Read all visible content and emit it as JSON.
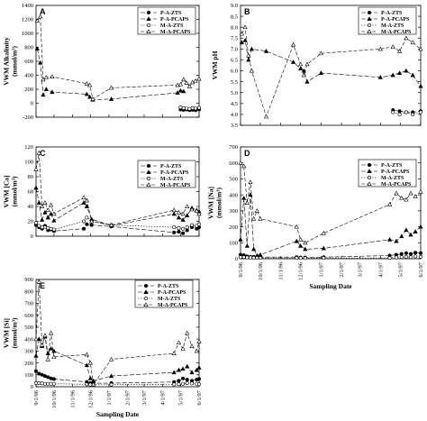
{
  "x_ticks": [
    "9/1/96",
    "10/1/96",
    "11/1/96",
    "12/1/96",
    "1/1/97",
    "2/1/97",
    "3/1/97",
    "4/1/97",
    "5/1/97",
    "6/1/97"
  ],
  "x_label": "Sampling Date",
  "legend": [
    "P-A-ZTS",
    "P-A-PCAPS",
    "M-A-ZTS",
    "M-A-PCAPS"
  ],
  "colors": {
    "axis": "#000000",
    "line": "#000000",
    "background": "#ffffff"
  },
  "chart_data": [
    {
      "panel": "A",
      "type": "line",
      "ylabel_lines": [
        "VWM Alkalinity",
        "(mmol/m³)"
      ],
      "ylim": [
        -200,
        1400
      ],
      "yticks": [
        -200,
        0,
        200,
        400,
        600,
        800,
        1000,
        1200,
        1400
      ],
      "x": [
        "9/3/96",
        "9/8/96",
        "9/13/96",
        "9/18/96",
        "9/28/96",
        "11/25/96",
        "11/30/96",
        "12/5/96",
        "1/5/97",
        "4/26/97",
        "5/1/97",
        "5/6/97",
        "5/11/97",
        "5/16/97",
        "5/21/97",
        "5/26/97",
        "6/1/97"
      ],
      "series": [
        {
          "name": "P-A-ZTS",
          "marker": "filled-circle",
          "values": [
            null,
            null,
            null,
            null,
            null,
            null,
            null,
            null,
            null,
            null,
            -90,
            -95,
            -90,
            -100,
            -95,
            -100,
            -90
          ]
        },
        {
          "name": "P-A-PCAPS",
          "marker": "filled-triangle",
          "values": [
            780,
            580,
            120,
            200,
            160,
            130,
            90,
            50,
            60,
            150,
            180,
            170,
            null,
            null,
            null,
            null,
            null
          ]
        },
        {
          "name": "M-A-ZTS",
          "marker": "open-circle",
          "values": [
            null,
            null,
            null,
            null,
            null,
            null,
            null,
            null,
            null,
            null,
            -60,
            -70,
            -75,
            -80,
            -70,
            -75,
            -65
          ]
        },
        {
          "name": "M-A-PCAPS",
          "marker": "open-triangle",
          "values": [
            1180,
            1240,
            340,
            370,
            380,
            280,
            260,
            60,
            220,
            260,
            270,
            340,
            290,
            240,
            300,
            320,
            350
          ]
        }
      ]
    },
    {
      "panel": "B",
      "type": "line",
      "ylabel_lines": [
        "VWM pH"
      ],
      "ylim": [
        3.5,
        9.0
      ],
      "yticks": [
        3.5,
        4.0,
        4.5,
        5.0,
        5.5,
        6.0,
        6.5,
        7.0,
        7.5,
        8.0,
        8.5,
        9.0
      ],
      "x": [
        "9/3/96",
        "9/8/96",
        "9/13/96",
        "9/18/96",
        "10/10/96",
        "11/20/96",
        "12/1/96",
        "12/6/96",
        "12/11/96",
        "1/1/97",
        "4/1/97",
        "4/20/97",
        "4/30/97",
        "5/10/97",
        "5/20/97",
        "6/1/97"
      ],
      "series": [
        {
          "name": "P-A-ZTS",
          "marker": "filled-circle",
          "values": [
            null,
            null,
            null,
            null,
            null,
            null,
            null,
            null,
            null,
            null,
            null,
            4.2,
            4.15,
            4.1,
            4.1,
            4.15
          ]
        },
        {
          "name": "P-A-PCAPS",
          "marker": "filled-triangle",
          "values": [
            7.3,
            7.4,
            6.5,
            7.0,
            6.9,
            6.4,
            6.1,
            6.0,
            5.5,
            5.9,
            5.7,
            5.8,
            5.9,
            6.0,
            5.8,
            5.3
          ]
        },
        {
          "name": "M-A-ZTS",
          "marker": "open-circle",
          "values": [
            null,
            null,
            null,
            null,
            null,
            null,
            null,
            null,
            null,
            null,
            null,
            4.1,
            4.0,
            4.1,
            4.0,
            4.1
          ]
        },
        {
          "name": "M-A-PCAPS",
          "marker": "open-triangle",
          "values": [
            7.7,
            8.0,
            6.7,
            6.0,
            3.9,
            7.2,
            6.3,
            5.8,
            6.3,
            6.8,
            7.0,
            7.1,
            6.9,
            7.5,
            7.3,
            7.0
          ]
        }
      ]
    },
    {
      "panel": "C",
      "type": "line",
      "ylabel_lines": [
        "VWM [Ca]",
        "(mmol/m³)"
      ],
      "ylim": [
        0,
        120
      ],
      "yticks": [
        0,
        20,
        40,
        60,
        80,
        100,
        120
      ],
      "x": [
        "9/1/96",
        "9/6/96",
        "9/11/96",
        "9/16/96",
        "9/21/96",
        "9/26/96",
        "10/1/96",
        "11/20/96",
        "11/25/96",
        "12/3/96",
        "1/5/97",
        "4/20/97",
        "4/28/97",
        "5/5/97",
        "5/12/97",
        "5/20/97",
        "5/28/97",
        "6/1/97"
      ],
      "series": [
        {
          "name": "P-A-ZTS",
          "marker": "filled-circle",
          "values": [
            15,
            12,
            10,
            14,
            8,
            9,
            7,
            10,
            16,
            15,
            13,
            5,
            6,
            4,
            8,
            12,
            10,
            12
          ]
        },
        {
          "name": "P-A-PCAPS",
          "marker": "filled-triangle",
          "values": [
            65,
            45,
            22,
            32,
            25,
            30,
            21,
            45,
            40,
            23,
            14,
            30,
            25,
            22,
            28,
            38,
            35,
            33
          ]
        },
        {
          "name": "M-A-ZTS",
          "marker": "open-circle",
          "values": [
            18,
            14,
            12,
            12,
            11,
            10,
            9,
            20,
            25,
            20,
            15,
            12,
            11,
            10,
            12,
            15,
            14,
            16
          ]
        },
        {
          "name": "M-A-PCAPS",
          "marker": "open-triangle",
          "values": [
            90,
            112,
            40,
            45,
            35,
            42,
            30,
            52,
            48,
            20,
            15,
            35,
            32,
            30,
            40,
            36,
            34,
            30
          ]
        }
      ]
    },
    {
      "panel": "D",
      "type": "line",
      "ylabel_lines": [
        "VWM [Na]",
        "(mmol/m³)"
      ],
      "ylim": [
        0,
        700
      ],
      "yticks": [
        0,
        100,
        200,
        300,
        400,
        500,
        600,
        700
      ],
      "x": [
        "9/1/96",
        "9/6/96",
        "9/11/96",
        "9/16/96",
        "9/21/96",
        "9/26/96",
        "10/1/96",
        "11/25/96",
        "12/1/96",
        "12/8/96",
        "1/5/97",
        "4/15/97",
        "4/25/97",
        "5/3/97",
        "5/10/97",
        "5/17/97",
        "5/24/97",
        "6/1/97"
      ],
      "series": [
        {
          "name": "P-A-ZTS",
          "marker": "filled-circle",
          "values": [
            25,
            22,
            15,
            12,
            12,
            10,
            10,
            10,
            8,
            8,
            10,
            20,
            25,
            30,
            35,
            30,
            38,
            35
          ]
        },
        {
          "name": "P-A-PCAPS",
          "marker": "filled-triangle",
          "values": [
            120,
            380,
            80,
            400,
            60,
            20,
            25,
            110,
            80,
            60,
            65,
            120,
            110,
            140,
            180,
            150,
            170,
            200
          ]
        },
        {
          "name": "M-A-ZTS",
          "marker": "open-circle",
          "values": [
            10,
            10,
            8,
            8,
            6,
            5,
            5,
            5,
            4,
            4,
            5,
            5,
            8,
            10,
            12,
            10,
            15,
            12
          ]
        },
        {
          "name": "M-A-PCAPS",
          "marker": "open-triangle",
          "values": [
            600,
            580,
            350,
            480,
            250,
            300,
            250,
            200,
            120,
            100,
            160,
            340,
            410,
            380,
            370,
            410,
            390,
            420
          ]
        }
      ]
    },
    {
      "panel": "E",
      "type": "line",
      "ylabel_lines": [
        "VWM [Si]",
        "(mmol/m³)"
      ],
      "ylim": [
        0,
        900
      ],
      "yticks": [
        0,
        100,
        200,
        300,
        400,
        500,
        600,
        700,
        800,
        900
      ],
      "x": [
        "9/1/96",
        "9/6/96",
        "9/11/96",
        "9/16/96",
        "9/21/96",
        "9/26/96",
        "10/1/96",
        "11/25/96",
        "12/1/96",
        "12/6/96",
        "1/5/97",
        "4/20/97",
        "4/28/97",
        "5/5/97",
        "5/12/97",
        "5/20/97",
        "5/28/97",
        "6/1/97"
      ],
      "series": [
        {
          "name": "P-A-ZTS",
          "marker": "filled-circle",
          "values": [
            130,
            110,
            100,
            90,
            80,
            70,
            65,
            40,
            30,
            30,
            30,
            40,
            50,
            70,
            60,
            50,
            60,
            65
          ]
        },
        {
          "name": "P-A-PCAPS",
          "marker": "filled-triangle",
          "values": [
            260,
            400,
            340,
            420,
            280,
            320,
            300,
            180,
            70,
            50,
            90,
            120,
            140,
            150,
            170,
            120,
            140,
            160
          ]
        },
        {
          "name": "M-A-ZTS",
          "marker": "open-circle",
          "values": [
            30,
            30,
            28,
            25,
            25,
            25,
            25,
            20,
            18,
            18,
            18,
            20,
            22,
            25,
            30,
            28,
            25,
            22
          ]
        },
        {
          "name": "M-A-PCAPS",
          "marker": "open-triangle",
          "values": [
            400,
            880,
            350,
            430,
            230,
            450,
            250,
            270,
            200,
            20,
            230,
            280,
            370,
            320,
            450,
            340,
            300,
            380
          ]
        }
      ]
    }
  ]
}
